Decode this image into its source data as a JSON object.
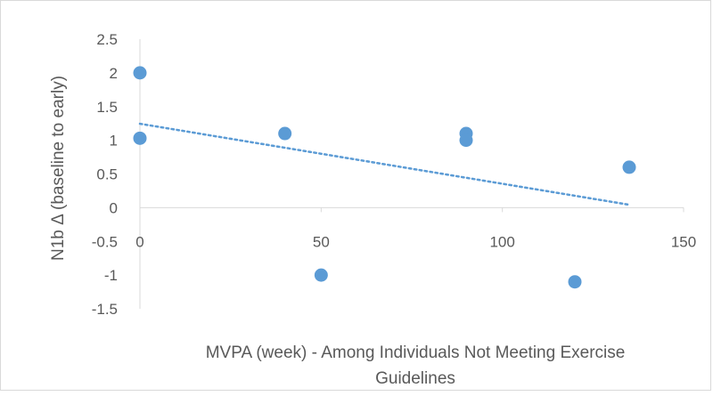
{
  "chart_data": {
    "type": "scatter",
    "title": "",
    "xlabel": "MVPA (week) - Among Individuals Not Meeting Exercise Guidelines",
    "ylabel": "N1b Δ (baseline to early)",
    "xlim": [
      0,
      150
    ],
    "ylim": [
      -1.5,
      2.5
    ],
    "xticks": [
      0,
      50,
      100,
      150
    ],
    "yticks": [
      -1.5,
      -1,
      -0.5,
      0,
      0.5,
      1,
      1.5,
      2,
      2.5
    ],
    "xtick_labels": [
      "0",
      "50",
      "100",
      "150"
    ],
    "ytick_labels": [
      "-1.5",
      "-1",
      "-0.5",
      "0",
      "0.5",
      "1",
      "1.5",
      "2",
      "2.5"
    ],
    "grid": false,
    "legend": "none",
    "series": [
      {
        "color": "#5b9bd5",
        "points": [
          {
            "x": 0,
            "y": 2.0
          },
          {
            "x": 0,
            "y": 1.03
          },
          {
            "x": 40,
            "y": 1.1
          },
          {
            "x": 50,
            "y": -1.0
          },
          {
            "x": 90,
            "y": 1.1
          },
          {
            "x": 90,
            "y": 1.0
          },
          {
            "x": 120,
            "y": -1.1
          },
          {
            "x": 135,
            "y": 0.6
          }
        ]
      }
    ],
    "trendline": {
      "type": "linear",
      "style": "dotted",
      "color": "#5b9bd5",
      "x_range": [
        0,
        135
      ],
      "slope": -0.0089,
      "intercept": 1.245
    }
  }
}
